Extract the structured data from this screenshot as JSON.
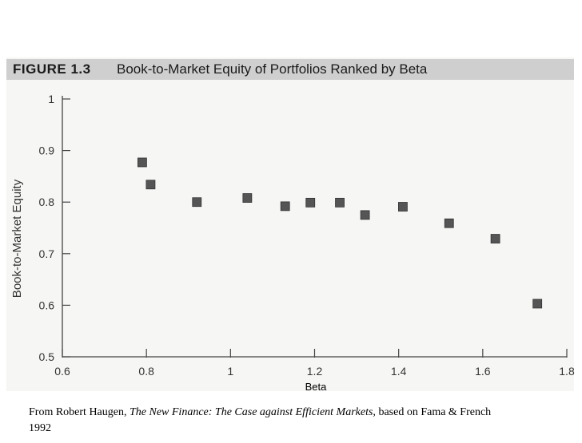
{
  "figure": {
    "label": "FIGURE 1.3",
    "title": "Book-to-Market Equity of Portfolios Ranked by Beta"
  },
  "caption": {
    "prefix": "From Robert Haugen, ",
    "book": "The New Finance: The Case against Efficient Markets,",
    "suffix": " based on Fama & French 1992"
  },
  "chart_data": {
    "type": "scatter",
    "xlabel": "Beta",
    "ylabel": "Book-to-Market Equity",
    "xlim": [
      0.6,
      1.8
    ],
    "ylim": [
      0.5,
      1.0
    ],
    "x_ticks": [
      "0.6",
      "0.8",
      "1",
      "1.2",
      "1.4",
      "1.6",
      "1.8"
    ],
    "y_ticks": [
      "0.5",
      "0.6",
      "0.7",
      "0.8",
      "0.9",
      "1"
    ],
    "grid": false,
    "points": [
      {
        "x": 0.79,
        "y": 0.877
      },
      {
        "x": 0.81,
        "y": 0.834
      },
      {
        "x": 0.92,
        "y": 0.8
      },
      {
        "x": 1.04,
        "y": 0.808
      },
      {
        "x": 1.13,
        "y": 0.792
      },
      {
        "x": 1.19,
        "y": 0.799
      },
      {
        "x": 1.26,
        "y": 0.799
      },
      {
        "x": 1.32,
        "y": 0.775
      },
      {
        "x": 1.41,
        "y": 0.791
      },
      {
        "x": 1.52,
        "y": 0.759
      },
      {
        "x": 1.63,
        "y": 0.729
      },
      {
        "x": 1.73,
        "y": 0.603
      }
    ],
    "marker_color": "#555555"
  }
}
